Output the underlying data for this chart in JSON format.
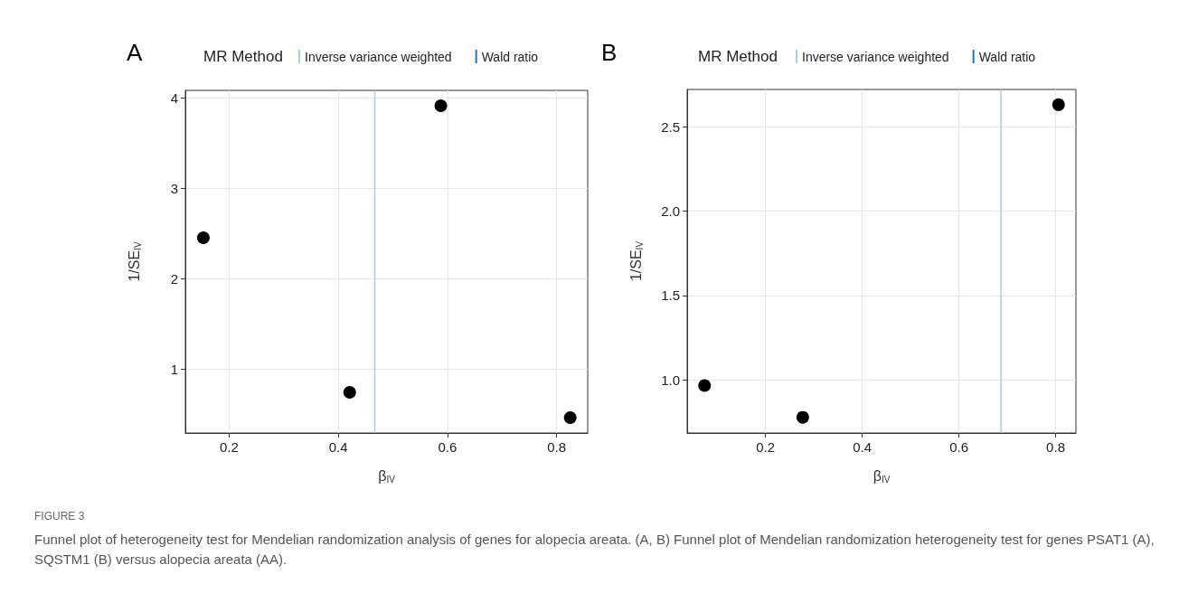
{
  "chart_data": [
    {
      "type": "scatter",
      "title": "A",
      "xlabel": "β$_{IV}$",
      "ylabel": "1/SE$_{IV}$",
      "legend_title": "MR Method",
      "x": [
        0.153,
        0.421,
        0.588,
        0.825
      ],
      "series": [
        {
          "color": "#000000",
          "values": [
            2.45,
            0.74,
            3.91,
            0.46
          ]
        },
        {
          "name": "Wald ratio",
          "type": "line",
          "color": "#1f78b4",
          "values": [
            null,
            null,
            null,
            null
          ]
        }
      ],
      "ref_lines": [
        {
          "axis": "x",
          "value": 0.467,
          "label": "Inverse variance weighted",
          "color": "#a6cee3"
        }
      ],
      "xlim": [
        0.12,
        0.857
      ],
      "xticks": [
        0.2,
        0.4,
        0.6,
        0.8
      ],
      "ylim": [
        0.29,
        4.08
      ],
      "yticks": [
        1,
        2,
        3,
        4
      ],
      "grid": true,
      "legend": "top",
      "marker": "circle",
      "annotations": [
        "FIGURE 3",
        "Funnel plot of heterogeneity test for Mendelian randomization analysis of genes for alopecia areata. (A, B) Funnel plot of Mendelian randomization heterogeneity test for genes PSAT1 (A), SQSTM1 (B) versus alopecia areata (AA)."
      ]
    },
    {
      "type": "scatter",
      "title": "B",
      "xlabel": "β$_{IV}$",
      "ylabel": "1/SE$_{IV}$",
      "legend_title": "MR Method",
      "x": [
        0.074,
        0.277,
        0.806
      ],
      "series": [
        {
          "color": "#000000",
          "values": [
            0.967,
            0.779,
            2.63
          ]
        },
        {
          "name": "Wald ratio",
          "type": "line",
          "color": "#1f78b4",
          "values": [
            null,
            null,
            null
          ]
        }
      ],
      "ref_lines": [
        {
          "axis": "x",
          "value": 0.687,
          "label": "Inverse variance weighted",
          "color": "#a6cee3"
        }
      ],
      "xlim": [
        0.038,
        0.842
      ],
      "xticks": [
        0.2,
        0.4,
        0.6,
        0.8
      ],
      "ylim": [
        0.686,
        2.72
      ],
      "yticks": [
        {
          "value": 1,
          "label": "1.0"
        },
        1.5,
        {
          "value": 2,
          "label": "2.0"
        },
        2.5
      ],
      "grid": true,
      "legend": "top",
      "marker": "circle"
    }
  ]
}
